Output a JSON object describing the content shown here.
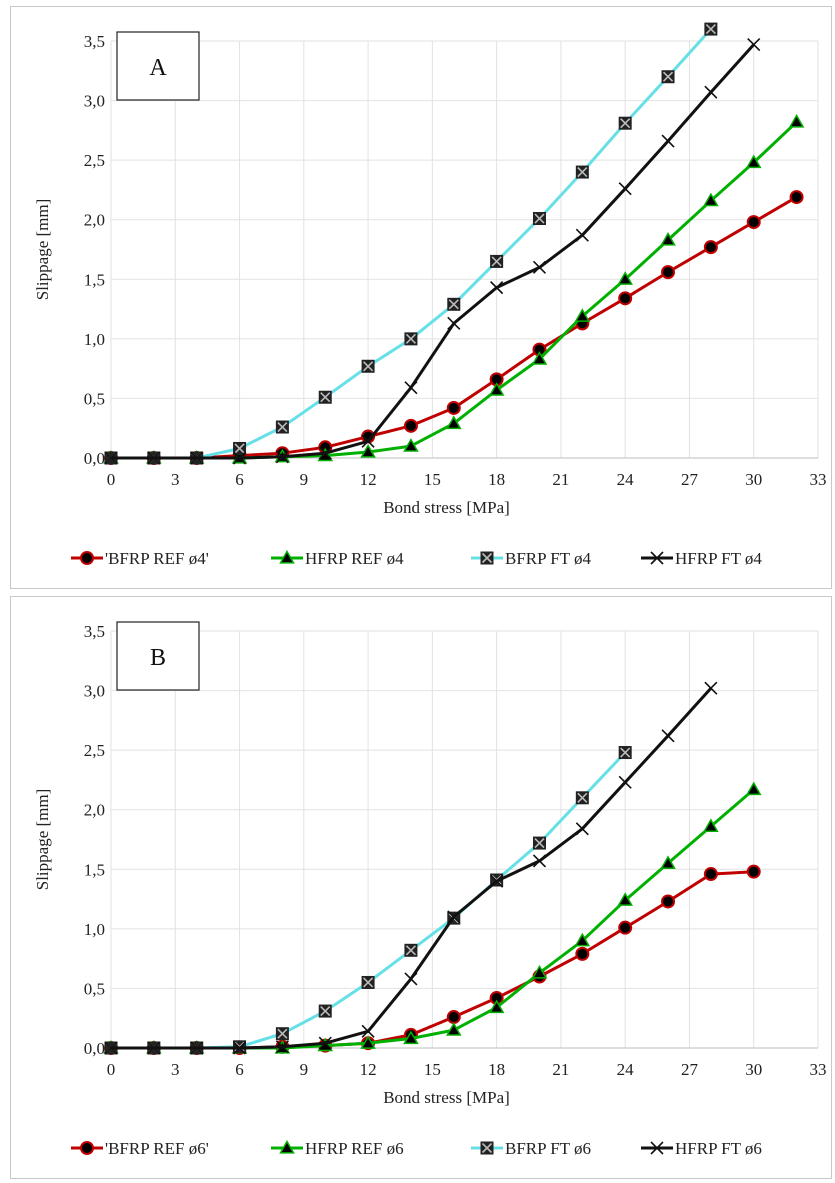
{
  "chart_data": [
    {
      "type": "line",
      "panel_label": "A",
      "xlabel": "Bond stress [MPa]",
      "ylabel": "Slippage [mm]",
      "xlim": [
        0,
        33
      ],
      "ylim": [
        0,
        3.5
      ],
      "x_ticks": [
        "0",
        "3",
        "6",
        "9",
        "12",
        "15",
        "18",
        "21",
        "24",
        "27",
        "30",
        "33"
      ],
      "y_ticks": [
        "0,0",
        "0,5",
        "1,0",
        "1,5",
        "2,0",
        "2,5",
        "3,0",
        "3,5"
      ],
      "grid": true,
      "legend_position": "bottom",
      "series": [
        {
          "name": "'BFRP REF ø4'",
          "color": "#c00000",
          "marker": "circle",
          "points": [
            [
              0,
              0
            ],
            [
              2,
              0
            ],
            [
              4,
              0
            ],
            [
              6,
              0.02
            ],
            [
              8,
              0.04
            ],
            [
              10,
              0.09
            ],
            [
              12,
              0.18
            ],
            [
              14,
              0.27
            ],
            [
              16,
              0.42
            ],
            [
              18,
              0.66
            ],
            [
              20,
              0.91
            ],
            [
              22,
              1.13
            ],
            [
              24,
              1.34
            ],
            [
              26,
              1.56
            ],
            [
              28,
              1.77
            ],
            [
              30,
              1.98
            ],
            [
              32,
              2.19
            ]
          ]
        },
        {
          "name": "HFRP REF ø4",
          "color": "#00b000",
          "marker": "triangle",
          "points": [
            [
              0,
              0
            ],
            [
              2,
              0
            ],
            [
              4,
              0
            ],
            [
              6,
              0
            ],
            [
              8,
              0.01
            ],
            [
              10,
              0.02
            ],
            [
              12,
              0.05
            ],
            [
              14,
              0.1
            ],
            [
              16,
              0.29
            ],
            [
              18,
              0.57
            ],
            [
              20,
              0.83
            ],
            [
              22,
              1.19
            ],
            [
              24,
              1.5
            ],
            [
              26,
              1.83
            ],
            [
              28,
              2.16
            ],
            [
              30,
              2.48
            ],
            [
              32,
              2.82
            ]
          ]
        },
        {
          "name": "BFRP FT ø4",
          "color": "#66e0e6",
          "marker": "boxx",
          "points": [
            [
              0,
              0
            ],
            [
              2,
              0
            ],
            [
              4,
              0
            ],
            [
              6,
              0.08
            ],
            [
              8,
              0.26
            ],
            [
              10,
              0.51
            ],
            [
              12,
              0.77
            ],
            [
              14,
              1.0
            ],
            [
              16,
              1.29
            ],
            [
              18,
              1.65
            ],
            [
              20,
              2.01
            ],
            [
              22,
              2.4
            ],
            [
              24,
              2.81
            ],
            [
              26,
              3.2
            ],
            [
              28,
              3.6
            ]
          ]
        },
        {
          "name": "HFRP FT ø4",
          "color": "#111111",
          "marker": "x",
          "points": [
            [
              0,
              0
            ],
            [
              2,
              0
            ],
            [
              4,
              0
            ],
            [
              6,
              0
            ],
            [
              8,
              0.01
            ],
            [
              10,
              0.04
            ],
            [
              12,
              0.14
            ],
            [
              14,
              0.59
            ],
            [
              16,
              1.13
            ],
            [
              18,
              1.43
            ],
            [
              20,
              1.6
            ],
            [
              22,
              1.87
            ],
            [
              24,
              2.26
            ],
            [
              26,
              2.66
            ],
            [
              28,
              3.07
            ],
            [
              30,
              3.47
            ]
          ]
        }
      ]
    },
    {
      "type": "line",
      "panel_label": "B",
      "xlabel": "Bond stress [MPa]",
      "ylabel": "Slippage [mm]",
      "xlim": [
        0,
        33
      ],
      "ylim": [
        0,
        3.5
      ],
      "x_ticks": [
        "0",
        "3",
        "6",
        "9",
        "12",
        "15",
        "18",
        "21",
        "24",
        "27",
        "30",
        "33"
      ],
      "y_ticks": [
        "0,0",
        "0,5",
        "1,0",
        "1,5",
        "2,0",
        "2,5",
        "3,0",
        "3,5"
      ],
      "grid": true,
      "legend_position": "bottom",
      "series": [
        {
          "name": "'BFRP REF ø6'",
          "color": "#c00000",
          "marker": "circle",
          "points": [
            [
              0,
              0
            ],
            [
              2,
              0
            ],
            [
              4,
              0
            ],
            [
              6,
              0
            ],
            [
              8,
              0.01
            ],
            [
              10,
              0.02
            ],
            [
              12,
              0.04
            ],
            [
              14,
              0.11
            ],
            [
              16,
              0.26
            ],
            [
              18,
              0.42
            ],
            [
              20,
              0.6
            ],
            [
              22,
              0.79
            ],
            [
              24,
              1.01
            ],
            [
              26,
              1.23
            ],
            [
              28,
              1.46
            ],
            [
              30,
              1.48
            ]
          ]
        },
        {
          "name": "HFRP REF ø6",
          "color": "#00b000",
          "marker": "triangle",
          "points": [
            [
              0,
              0
            ],
            [
              2,
              0
            ],
            [
              4,
              0
            ],
            [
              6,
              0
            ],
            [
              8,
              0
            ],
            [
              10,
              0.02
            ],
            [
              12,
              0.04
            ],
            [
              14,
              0.08
            ],
            [
              16,
              0.15
            ],
            [
              18,
              0.34
            ],
            [
              20,
              0.63
            ],
            [
              22,
              0.9
            ],
            [
              24,
              1.24
            ],
            [
              26,
              1.55
            ],
            [
              28,
              1.86
            ],
            [
              30,
              2.17
            ]
          ]
        },
        {
          "name": "BFRP FT ø6",
          "color": "#66e0e6",
          "marker": "boxx",
          "points": [
            [
              0,
              0
            ],
            [
              2,
              0
            ],
            [
              4,
              0
            ],
            [
              6,
              0.01
            ],
            [
              8,
              0.12
            ],
            [
              10,
              0.31
            ],
            [
              12,
              0.55
            ],
            [
              14,
              0.82
            ],
            [
              16,
              1.09
            ],
            [
              18,
              1.41
            ],
            [
              20,
              1.72
            ],
            [
              22,
              2.1
            ],
            [
              24,
              2.48
            ]
          ]
        },
        {
          "name": "HFRP FT ø6",
          "color": "#111111",
          "marker": "x",
          "points": [
            [
              0,
              0
            ],
            [
              2,
              0
            ],
            [
              4,
              0
            ],
            [
              6,
              0
            ],
            [
              8,
              0.01
            ],
            [
              10,
              0.04
            ],
            [
              12,
              0.14
            ],
            [
              14,
              0.58
            ],
            [
              16,
              1.1
            ],
            [
              18,
              1.4
            ],
            [
              20,
              1.57
            ],
            [
              22,
              1.84
            ],
            [
              24,
              2.23
            ],
            [
              26,
              2.62
            ],
            [
              28,
              3.02
            ]
          ]
        }
      ]
    }
  ]
}
